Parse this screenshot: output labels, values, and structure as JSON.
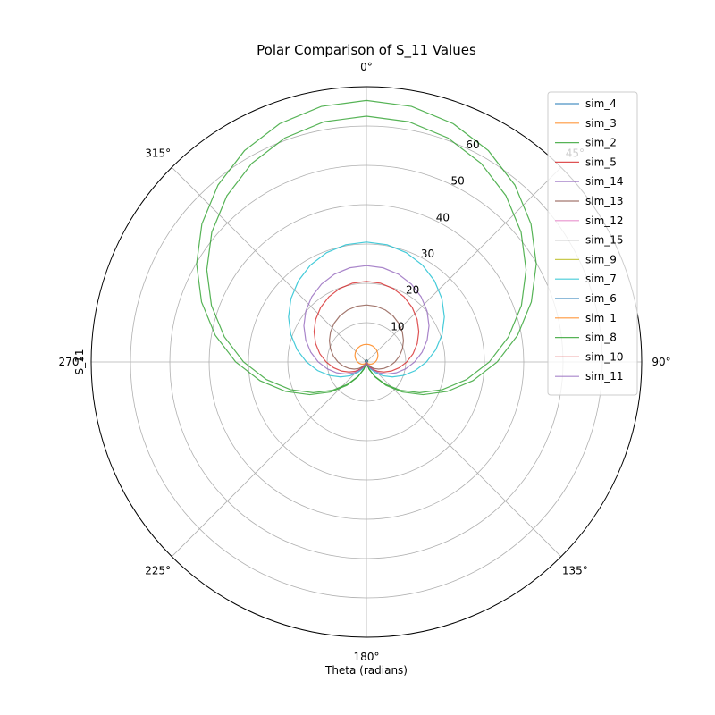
{
  "chart_data": {
    "type": "polar-line",
    "title": "Polar Comparison of S_11 Values",
    "xlabel": "Theta (radians)",
    "ylabel": "S_11",
    "theta_zero_location": "N",
    "theta_direction": "clockwise",
    "rlim": [
      0,
      70
    ],
    "r_ticks": [
      10,
      20,
      30,
      40,
      50,
      60
    ],
    "theta_tick_labels": [
      "0°",
      "45°",
      "90°",
      "135°",
      "180°",
      "225°",
      "270°",
      "315°"
    ],
    "grid": true,
    "legend_position": "upper-right",
    "series": [
      {
        "name": "sim_4",
        "color": "#1f77b4",
        "peak": 0.5
      },
      {
        "name": "sim_3",
        "color": "#ff7f0e",
        "peak": 0.5
      },
      {
        "name": "sim_2",
        "color": "#2ca02c",
        "peak": 66.5
      },
      {
        "name": "sim_5",
        "color": "#d62728",
        "peak": 0.5
      },
      {
        "name": "sim_14",
        "color": "#9467bd",
        "peak": 0.5
      },
      {
        "name": "sim_13",
        "color": "#8c564b",
        "peak": 14.5
      },
      {
        "name": "sim_12",
        "color": "#e377c2",
        "peak": 0.5
      },
      {
        "name": "sim_15",
        "color": "#7f7f7f",
        "peak": 0.5
      },
      {
        "name": "sim_9",
        "color": "#bcbd22",
        "peak": 0.5
      },
      {
        "name": "sim_7",
        "color": "#17becf",
        "peak": 30.5
      },
      {
        "name": "sim_6",
        "color": "#1f77b4",
        "peak": 0.5
      },
      {
        "name": "sim_1",
        "color": "#ff7f0e",
        "peak": 4.5
      },
      {
        "name": "sim_8",
        "color": "#2ca02c",
        "peak": 62.5
      },
      {
        "name": "sim_10",
        "color": "#d62728",
        "peak": 20.5
      },
      {
        "name": "sim_11",
        "color": "#9467bd",
        "peak": 24.5
      }
    ]
  }
}
